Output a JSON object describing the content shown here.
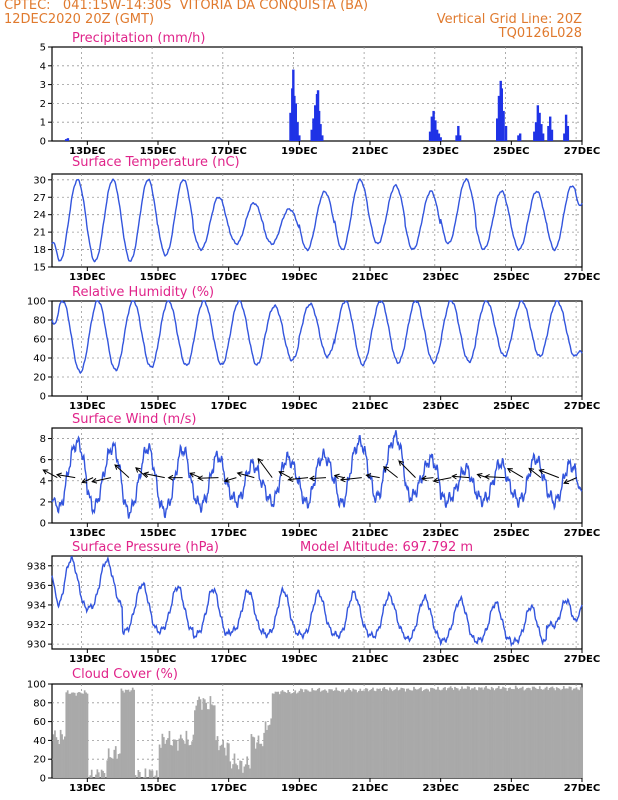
{
  "header": {
    "line1": "CPTEC:   041:15W-14:30S  VITORIA DA CONQUISTA (BA)",
    "line2": "12DEC2020 20Z (GMT)",
    "vgrid": "Vertical Grid Line: 20Z",
    "code": "TQ0126L028"
  },
  "colors": {
    "series": "#3355dd",
    "bars": "#1f33e6",
    "cloud": "#a9a9a9",
    "title": "#e0248a",
    "header": "#e07a2e"
  },
  "x_axis": {
    "start": "12DEC 20Z",
    "end": "27DEC",
    "tick_labels": [
      "13DEC",
      "15DEC",
      "17DEC",
      "19DEC",
      "21DEC",
      "23DEC",
      "25DEC",
      "27DEC"
    ],
    "tick_days": [
      13,
      15,
      17,
      19,
      21,
      23,
      25,
      27
    ]
  },
  "chart_data": [
    {
      "id": "precip",
      "type": "bar",
      "title": "Precipitation (mm/h)",
      "ylim": [
        0,
        5
      ],
      "yticks": [
        0,
        1,
        2,
        3,
        4,
        5
      ],
      "grid": true,
      "x_unit": "day of December 2020",
      "points": [
        [
          12.4,
          0.1
        ],
        [
          12.45,
          0.15
        ],
        [
          18.75,
          1.5
        ],
        [
          18.8,
          2.8
        ],
        [
          18.83,
          3.8
        ],
        [
          18.86,
          2.4
        ],
        [
          18.9,
          2.0
        ],
        [
          18.95,
          1.0
        ],
        [
          19.0,
          0.3
        ],
        [
          19.35,
          0.6
        ],
        [
          19.4,
          1.2
        ],
        [
          19.45,
          1.9
        ],
        [
          19.5,
          2.5
        ],
        [
          19.53,
          2.7
        ],
        [
          19.56,
          1.6
        ],
        [
          19.6,
          0.9
        ],
        [
          19.65,
          0.3
        ],
        [
          22.7,
          0.5
        ],
        [
          22.75,
          1.3
        ],
        [
          22.8,
          1.6
        ],
        [
          22.85,
          1.1
        ],
        [
          22.9,
          0.6
        ],
        [
          22.95,
          0.4
        ],
        [
          23.0,
          0.2
        ],
        [
          23.45,
          0.3
        ],
        [
          23.5,
          0.8
        ],
        [
          23.55,
          0.3
        ],
        [
          24.6,
          1.2
        ],
        [
          24.65,
          2.4
        ],
        [
          24.7,
          3.2
        ],
        [
          24.73,
          2.8
        ],
        [
          24.78,
          1.6
        ],
        [
          24.85,
          0.8
        ],
        [
          25.2,
          0.3
        ],
        [
          25.25,
          0.4
        ],
        [
          25.65,
          0.5
        ],
        [
          25.7,
          1.0
        ],
        [
          25.75,
          1.9
        ],
        [
          25.8,
          1.5
        ],
        [
          25.85,
          0.9
        ],
        [
          25.9,
          0.4
        ],
        [
          26.05,
          0.8
        ],
        [
          26.1,
          1.3
        ],
        [
          26.15,
          0.6
        ],
        [
          26.5,
          0.4
        ],
        [
          26.55,
          1.4
        ],
        [
          26.6,
          0.8
        ]
      ]
    },
    {
      "id": "temp",
      "type": "line",
      "title": "Surface Temperature (nC)",
      "ylim": [
        15,
        31
      ],
      "yticks": [
        15,
        18,
        21,
        24,
        27,
        30
      ],
      "grid": true,
      "daily_max": [
        30,
        30,
        30,
        30,
        27,
        26,
        25,
        28,
        30,
        29,
        28,
        30,
        28,
        28,
        29
      ],
      "daily_min": [
        16,
        16,
        16,
        17,
        18,
        19,
        19,
        18,
        18,
        19,
        18,
        19,
        18,
        18,
        18
      ],
      "start_value": 19,
      "end_value": 26
    },
    {
      "id": "rh",
      "type": "line",
      "title": "Relative Humidity (%)",
      "ylim": [
        0,
        100
      ],
      "yticks": [
        0,
        20,
        40,
        60,
        80,
        100
      ],
      "grid": true,
      "daily_max": [
        100,
        100,
        100,
        100,
        100,
        100,
        95,
        97,
        100,
        100,
        100,
        100,
        100,
        100,
        100
      ],
      "daily_min": [
        25,
        27,
        30,
        32,
        33,
        33,
        38,
        42,
        33,
        35,
        35,
        36,
        42,
        42,
        42
      ],
      "start_value": 80,
      "end_value": 45
    },
    {
      "id": "wind",
      "type": "line",
      "title": "Surface Wind (m/s)",
      "ylim": [
        0,
        9
      ],
      "yticks": [
        0,
        2,
        4,
        6,
        8
      ],
      "grid": true,
      "daily_max": [
        7.7,
        7.2,
        7.0,
        6.8,
        6.2,
        5.5,
        6.2,
        6.5,
        7.8,
        8.2,
        6.0,
        5.0,
        5.5,
        6.0,
        5.5
      ],
      "daily_min": [
        1.5,
        1.5,
        1.0,
        1.0,
        1.5,
        2.0,
        2.0,
        2.0,
        2.0,
        2.5,
        2.5,
        2.0,
        2.0,
        2.0,
        2.0
      ],
      "start_value": 2.0,
      "end_value": 3.0,
      "vectors": {
        "count": 30,
        "direction": "from east-northeast"
      }
    },
    {
      "id": "pres",
      "type": "line",
      "title": "Surface Pressure (hPa)",
      "annotation": "Model Altitude: 697.792 m",
      "ylim": [
        929.5,
        939
      ],
      "yticks": [
        930,
        932,
        934,
        936,
        938
      ],
      "grid": true,
      "daily_max": [
        938.3,
        938.2,
        935.8,
        935.5,
        935.2,
        935.0,
        935.0,
        934.8,
        934.8,
        934.6,
        934.4,
        934.2,
        933.8,
        933.4,
        934.0
      ],
      "daily_min": [
        933.0,
        933.4,
        931.0,
        931.0,
        930.5,
        930.8,
        930.5,
        930.5,
        930.5,
        930.5,
        930.2,
        930.0,
        930.0,
        929.8,
        931.5
      ],
      "start_value": 937.0,
      "end_value": 934.0
    },
    {
      "id": "cloud",
      "type": "area",
      "title": "Cloud Cover (%)",
      "ylim": [
        0,
        100
      ],
      "yticks": [
        0,
        20,
        40,
        60,
        80,
        100
      ],
      "grid": true,
      "segments": [
        [
          12.0,
          12.35,
          45
        ],
        [
          12.35,
          13.0,
          92
        ],
        [
          13.0,
          13.5,
          3
        ],
        [
          13.5,
          13.9,
          25
        ],
        [
          13.9,
          14.3,
          95
        ],
        [
          14.3,
          15.0,
          3
        ],
        [
          15.0,
          16.0,
          40
        ],
        [
          16.0,
          16.6,
          80
        ],
        [
          16.6,
          17.0,
          35
        ],
        [
          17.0,
          17.6,
          15
        ],
        [
          17.6,
          18.0,
          40
        ],
        [
          18.0,
          18.2,
          55
        ],
        [
          18.2,
          19.0,
          93
        ],
        [
          19.0,
          21.0,
          95
        ],
        [
          21.0,
          23.0,
          96
        ],
        [
          23.0,
          25.0,
          97
        ],
        [
          25.0,
          27.0,
          97
        ]
      ]
    }
  ]
}
